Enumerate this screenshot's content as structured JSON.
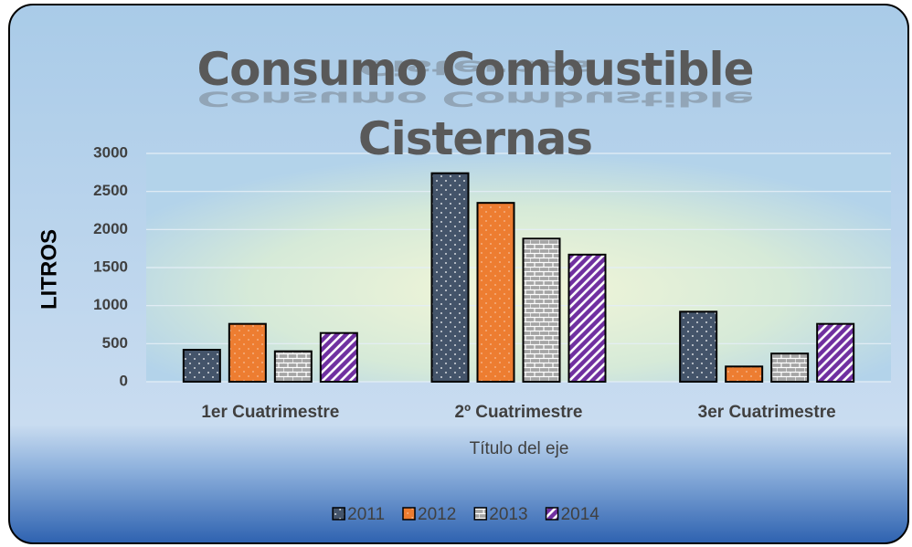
{
  "chart_data": {
    "type": "bar",
    "title": "Consumo Combustible Cisternas",
    "ylabel": "LITROS",
    "xlabel": "Título del eje",
    "categories": [
      "1er Cuatrimestre",
      "2º Cuatrimestre",
      "3er Cuatrimestre"
    ],
    "series": [
      {
        "name": "2011",
        "color": "#44546a",
        "values": [
          420,
          2740,
          920
        ]
      },
      {
        "name": "2012",
        "color": "#ed7d31",
        "values": [
          760,
          2350,
          200
        ]
      },
      {
        "name": "2013",
        "color": "#a5a5a5",
        "values": [
          400,
          1880,
          370
        ]
      },
      {
        "name": "2014",
        "color": "#7030a0",
        "values": [
          640,
          1670,
          760
        ]
      }
    ],
    "ylim": [
      0,
      3000
    ],
    "yticks": [
      0,
      500,
      1000,
      1500,
      2000,
      2500,
      3000
    ],
    "grid": true,
    "legend": "bottom"
  }
}
